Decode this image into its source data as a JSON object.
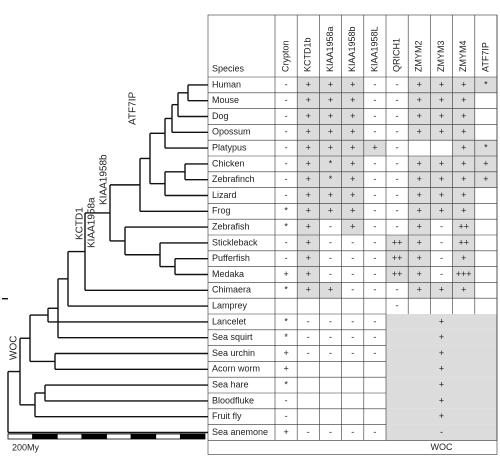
{
  "figure": {
    "columns": [
      "Species",
      "Crypton",
      "KCTD1b",
      "KIAA1958a",
      "KIAA1958b",
      "KIAA1958L",
      "QRICH1",
      "ZMYM2",
      "ZMYM3",
      "ZMYM4",
      "ATF7IP"
    ],
    "rows": [
      {
        "species": "Human",
        "cells": [
          "-",
          "+",
          "+",
          "+",
          "-",
          "-",
          "+",
          "+",
          "+",
          "*"
        ]
      },
      {
        "species": "Mouse",
        "cells": [
          "-",
          "+",
          "+",
          "+",
          "-",
          "-",
          "+",
          "+",
          "+",
          null
        ]
      },
      {
        "species": "Dog",
        "cells": [
          "-",
          "+",
          "+",
          "+",
          "-",
          "-",
          "+",
          "+",
          "+",
          null
        ]
      },
      {
        "species": "Opossum",
        "cells": [
          "-",
          "+",
          "+",
          "+",
          "-",
          "-",
          "+",
          "+",
          "+",
          null
        ]
      },
      {
        "species": "Platypus",
        "cells": [
          "-",
          "+",
          "+",
          "+",
          "+",
          "-",
          null,
          null,
          "+",
          "*"
        ]
      },
      {
        "species": "Chicken",
        "cells": [
          "-",
          "+",
          "*",
          "+",
          "-",
          "-",
          "+",
          "+",
          "+",
          "+"
        ]
      },
      {
        "species": "Zebrafinch",
        "cells": [
          "-",
          "+",
          "*",
          "+",
          "-",
          "-",
          "+",
          "+",
          "+",
          "+"
        ]
      },
      {
        "species": "Lizard",
        "cells": [
          "-",
          "+",
          "+",
          "+",
          "-",
          "-",
          "+",
          "+",
          "+",
          null
        ]
      },
      {
        "species": "Frog",
        "cells": [
          "*",
          "+",
          "+",
          "+",
          "-",
          "-",
          "+",
          "+",
          "+",
          null
        ]
      },
      {
        "species": "Zebrafish",
        "cells": [
          "*",
          "+",
          "-",
          "+",
          "-",
          "-",
          "+",
          "-",
          "++",
          null
        ]
      },
      {
        "species": "Stickleback",
        "cells": [
          "-",
          "+",
          "-",
          "-",
          "-",
          "++",
          "+",
          "-",
          "++",
          null
        ]
      },
      {
        "species": "Pufferfish",
        "cells": [
          "-",
          "+",
          "-",
          "-",
          "-",
          "++",
          "+",
          "-",
          "+",
          null
        ]
      },
      {
        "species": "Medaka",
        "cells": [
          "+",
          "+",
          "-",
          "-",
          "-",
          "++",
          "+",
          "-",
          "+++",
          null
        ]
      },
      {
        "species": "Chimaera",
        "cells": [
          "*",
          "+",
          "+",
          "-",
          "-",
          "-",
          "+",
          "+",
          "+",
          null
        ]
      },
      {
        "species": "Lamprey",
        "cells": [
          null,
          null,
          null,
          null,
          null,
          "-",
          null,
          null,
          null,
          null
        ]
      },
      {
        "species": "Lancelet",
        "cells": [
          "*",
          "-",
          "-",
          "-",
          "-"
        ],
        "merged": "+"
      },
      {
        "species": "Sea squirt",
        "cells": [
          "*",
          "-",
          "-",
          "-",
          "-"
        ],
        "merged": "+"
      },
      {
        "species": "Sea urchin",
        "cells": [
          "+",
          "-",
          "-",
          "-",
          "-"
        ],
        "merged": "+"
      },
      {
        "species": "Acorn worm",
        "cells": [
          "+",
          null,
          null,
          null,
          null
        ],
        "merged": "+"
      },
      {
        "species": "Sea hare",
        "cells": [
          "*",
          null,
          null,
          null,
          null
        ],
        "merged": "+"
      },
      {
        "species": "Bloodfluke",
        "cells": [
          "-",
          null,
          null,
          null,
          null
        ],
        "merged": "+"
      },
      {
        "species": "Fruit fly",
        "cells": [
          "-",
          null,
          null,
          null,
          null
        ],
        "merged": "+"
      },
      {
        "species": "Sea anemone",
        "cells": [
          "+",
          "-",
          "-",
          "-",
          "-"
        ],
        "merged": "-"
      }
    ],
    "footer": "WOC",
    "tree_labels": [
      "KCTD1",
      "KIAA1958a",
      "KIAA1958b",
      "ATF7IP",
      "WOC"
    ],
    "scale_label": "200My"
  }
}
